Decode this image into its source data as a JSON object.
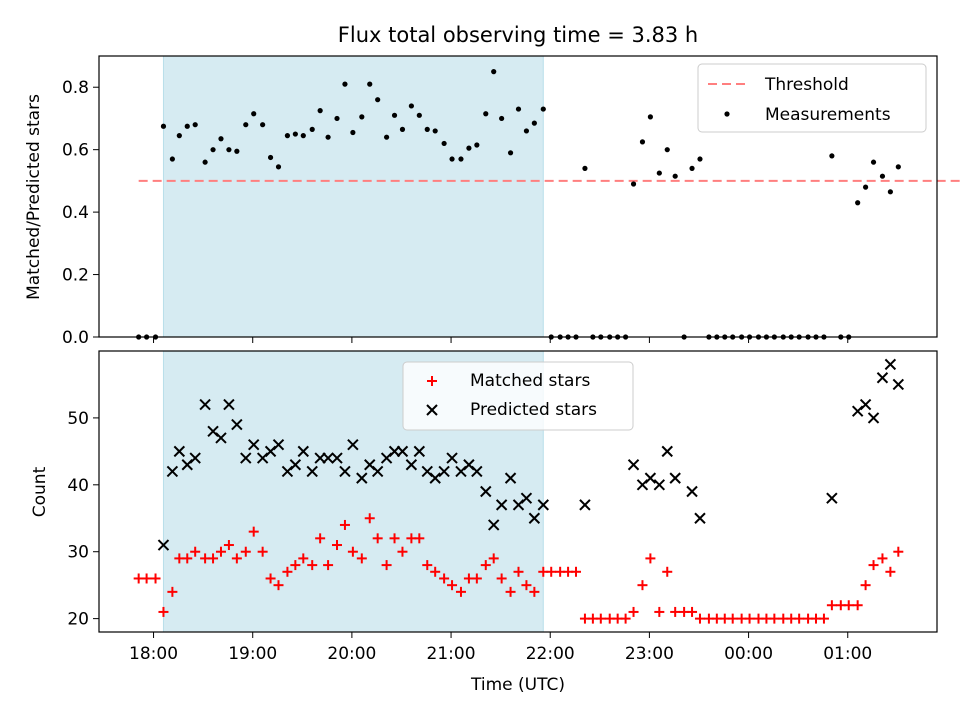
{
  "chart_data": [
    {
      "type": "scatter",
      "title": "Flux total observing time = 3.83 h",
      "ylabel": "Matched/Predicted stars",
      "xlabel": "",
      "ylim": [
        0,
        0.9
      ],
      "yticks": [
        "0.0",
        "0.2",
        "0.4",
        "0.6",
        "0.8"
      ],
      "ytick_values": [
        0.0,
        0.2,
        0.4,
        0.6,
        0.8
      ],
      "shaded_interval": {
        "start": 18.1,
        "end": 21.93,
        "color": "#add8e6"
      },
      "threshold": {
        "name": "Threshold",
        "value": 0.5,
        "x_start": 17.85,
        "x_end": 26.5,
        "color": "#ff7f7f"
      },
      "legend_position": "upper-right",
      "series": [
        {
          "name": "Measurements",
          "marker": "dot",
          "color": "#000000",
          "x": [
            17.85,
            17.93,
            18.02,
            18.1,
            18.19,
            18.26,
            18.34,
            18.42,
            18.52,
            18.6,
            18.68,
            18.76,
            18.84,
            18.93,
            19.01,
            19.1,
            19.18,
            19.26,
            19.35,
            19.43,
            19.51,
            19.6,
            19.68,
            19.76,
            19.85,
            19.93,
            20.01,
            20.1,
            20.18,
            20.26,
            20.35,
            20.43,
            20.51,
            20.6,
            20.68,
            20.76,
            20.84,
            20.93,
            21.01,
            21.1,
            21.18,
            21.26,
            21.35,
            21.43,
            21.51,
            21.6,
            21.68,
            21.76,
            21.84,
            21.93,
            22.01,
            22.1,
            22.18,
            22.26,
            22.35,
            22.43,
            22.51,
            22.6,
            22.68,
            22.76,
            22.84,
            22.93,
            23.01,
            23.1,
            23.18,
            23.26,
            23.35,
            23.43,
            23.51,
            23.6,
            23.68,
            23.76,
            23.84,
            23.93,
            24.01,
            24.1,
            24.18,
            24.26,
            24.35,
            24.43,
            24.51,
            24.6,
            24.68,
            24.76,
            24.84,
            24.93,
            25.01,
            25.1,
            25.18,
            25.26,
            25.35,
            25.43,
            25.51
          ],
          "y": [
            0.0,
            0.0,
            0.0,
            0.675,
            0.57,
            0.645,
            0.675,
            0.68,
            0.56,
            0.6,
            0.635,
            0.6,
            0.595,
            0.68,
            0.715,
            0.68,
            0.575,
            0.545,
            0.645,
            0.65,
            0.645,
            0.665,
            0.725,
            0.64,
            0.7,
            0.81,
            0.655,
            0.705,
            0.81,
            0.76,
            0.64,
            0.71,
            0.665,
            0.74,
            0.71,
            0.665,
            0.66,
            0.62,
            0.57,
            0.57,
            0.605,
            0.615,
            0.715,
            0.85,
            0.7,
            0.59,
            0.73,
            0.66,
            0.685,
            0.73,
            0.0,
            0.0,
            0.0,
            0.0,
            0.54,
            0.0,
            0.0,
            0.0,
            0.0,
            0.0,
            0.49,
            0.625,
            0.705,
            0.525,
            0.6,
            0.515,
            0.0,
            0.54,
            0.57,
            0.0,
            0.0,
            0.0,
            0.0,
            0.0,
            0.0,
            0.0,
            0.0,
            0.0,
            0.0,
            0.0,
            0.0,
            0.0,
            0.0,
            0.0,
            0.58,
            0.0,
            0.0,
            0.43,
            0.48,
            0.56,
            0.515,
            0.465,
            0.545
          ]
        }
      ]
    },
    {
      "type": "scatter",
      "xlabel": "Time (UTC)",
      "ylabel": "Count",
      "ylim": [
        18,
        60
      ],
      "yticks": [
        "20",
        "30",
        "40",
        "50"
      ],
      "ytick_values": [
        20,
        30,
        40,
        50
      ],
      "xlim": [
        17.45,
        25.9
      ],
      "xticks": [
        "18:00",
        "19:00",
        "20:00",
        "21:00",
        "22:00",
        "23:00",
        "00:00",
        "01:00"
      ],
      "xtick_values": [
        18,
        19,
        20,
        21,
        22,
        23,
        24,
        25
      ],
      "shaded_interval": {
        "start": 18.1,
        "end": 21.93,
        "color": "#add8e6"
      },
      "legend_position": "upper-center",
      "series": [
        {
          "name": "Matched stars",
          "marker": "plus",
          "color": "#ff0000",
          "x": [
            17.85,
            17.93,
            18.02,
            18.1,
            18.19,
            18.26,
            18.34,
            18.42,
            18.52,
            18.6,
            18.68,
            18.76,
            18.84,
            18.93,
            19.01,
            19.1,
            19.18,
            19.26,
            19.35,
            19.43,
            19.51,
            19.6,
            19.68,
            19.76,
            19.85,
            19.93,
            20.01,
            20.1,
            20.18,
            20.26,
            20.35,
            20.43,
            20.51,
            20.6,
            20.68,
            20.76,
            20.84,
            20.93,
            21.01,
            21.1,
            21.18,
            21.26,
            21.35,
            21.43,
            21.51,
            21.6,
            21.68,
            21.76,
            21.84,
            21.93,
            22.01,
            22.1,
            22.18,
            22.26,
            22.35,
            22.43,
            22.51,
            22.6,
            22.68,
            22.76,
            22.84,
            22.93,
            23.01,
            23.1,
            23.18,
            23.26,
            23.35,
            23.43,
            23.51,
            23.6,
            23.68,
            23.76,
            23.84,
            23.93,
            24.01,
            24.1,
            24.18,
            24.26,
            24.35,
            24.43,
            24.51,
            24.6,
            24.68,
            24.76,
            24.84,
            24.93,
            25.01,
            25.1,
            25.18,
            25.26,
            25.35,
            25.43,
            25.51
          ],
          "y": [
            26,
            26,
            26,
            21,
            24,
            29,
            29,
            30,
            29,
            29,
            30,
            31,
            29,
            30,
            33,
            30,
            26,
            25,
            27,
            28,
            29,
            28,
            32,
            28,
            31,
            34,
            30,
            29,
            35,
            32,
            28,
            32,
            30,
            32,
            32,
            28,
            27,
            26,
            25,
            24,
            26,
            26,
            28,
            29,
            26,
            24,
            27,
            25,
            24,
            27,
            27,
            27,
            27,
            27,
            20,
            20,
            20,
            20,
            20,
            20,
            21,
            25,
            29,
            21,
            27,
            21,
            21,
            21,
            20,
            20,
            20,
            20,
            20,
            20,
            20,
            20,
            20,
            20,
            20,
            20,
            20,
            20,
            20,
            20,
            22,
            22,
            22,
            22,
            25,
            28,
            29,
            27,
            30
          ]
        },
        {
          "name": "Predicted stars",
          "marker": "x",
          "color": "#000000",
          "x": [
            18.1,
            18.19,
            18.26,
            18.34,
            18.42,
            18.52,
            18.6,
            18.68,
            18.76,
            18.84,
            18.93,
            19.01,
            19.1,
            19.18,
            19.26,
            19.35,
            19.43,
            19.51,
            19.6,
            19.68,
            19.76,
            19.85,
            19.93,
            20.01,
            20.1,
            20.18,
            20.26,
            20.35,
            20.43,
            20.51,
            20.6,
            20.68,
            20.76,
            20.84,
            20.93,
            21.01,
            21.1,
            21.18,
            21.26,
            21.35,
            21.43,
            21.51,
            21.6,
            21.68,
            21.76,
            21.84,
            21.93,
            22.35,
            22.84,
            22.93,
            23.01,
            23.1,
            23.18,
            23.26,
            23.43,
            23.51,
            24.84,
            25.1,
            25.18,
            25.26,
            25.35,
            25.43,
            25.51
          ],
          "y": [
            31,
            42,
            45,
            43,
            44,
            52,
            48,
            47,
            52,
            49,
            44,
            46,
            44,
            45,
            46,
            42,
            43,
            45,
            42,
            44,
            44,
            44,
            42,
            46,
            41,
            43,
            42,
            44,
            45,
            45,
            43,
            45,
            42,
            41,
            42,
            44,
            42,
            43,
            42,
            39,
            34,
            37,
            41,
            37,
            38,
            35,
            37,
            37,
            43,
            40,
            41,
            40,
            45,
            41,
            39,
            35,
            38,
            51,
            52,
            50,
            56,
            58,
            55
          ]
        }
      ]
    }
  ]
}
